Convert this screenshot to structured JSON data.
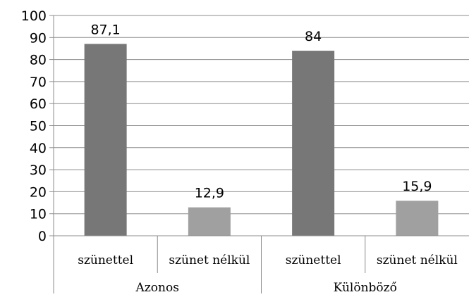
{
  "chart_data": {
    "type": "bar",
    "groups": [
      {
        "label": "Azonos",
        "categories": [
          "szünettel",
          "szünet nélkül"
        ],
        "values": [
          87.1,
          12.9
        ],
        "value_labels": [
          "87,1",
          "12,9"
        ]
      },
      {
        "label": "Különböző",
        "categories": [
          "szünettel",
          "szünet nélkül"
        ],
        "values": [
          84,
          15.9
        ],
        "value_labels": [
          "84",
          "15,9"
        ]
      }
    ],
    "ylim": [
      0,
      100
    ],
    "yticks": [
      "0",
      "10",
      "20",
      "30",
      "40",
      "50",
      "60",
      "70",
      "80",
      "90",
      "100"
    ],
    "grid": true,
    "bar_colors": [
      "#777777",
      "#a0a0a0"
    ]
  }
}
